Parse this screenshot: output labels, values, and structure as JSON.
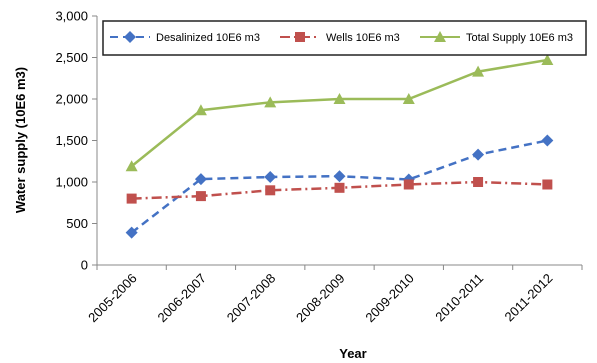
{
  "chart_data": {
    "type": "line",
    "title": "",
    "xlabel": "Year",
    "ylabel": "Water supply (10E6 m3)",
    "ylim": [
      0,
      3000
    ],
    "yticks": [
      0,
      500,
      1000,
      1500,
      2000,
      2500,
      3000
    ],
    "ytick_labels": [
      "0",
      "500",
      "1,000",
      "1,500",
      "2,000",
      "2,500",
      "3,000"
    ],
    "grid": false,
    "legend_position": "top",
    "categories": [
      "2005-2006",
      "2006-2007",
      "2007-2008",
      "2008-2009",
      "2009-2010",
      "2010-2011",
      "2011-2012"
    ],
    "series": [
      {
        "name": "Desalinized 10E6 m3",
        "values": [
          390,
          1035,
          1060,
          1070,
          1030,
          1330,
          1500
        ],
        "color": "#4472C4",
        "dash": "dashed",
        "marker": "diamond"
      },
      {
        "name": "Wells 10E6 m3",
        "values": [
          800,
          830,
          900,
          930,
          970,
          1000,
          970
        ],
        "color": "#C0504D",
        "dash": "dash-dot",
        "marker": "square"
      },
      {
        "name": "Total Supply 10E6 m3",
        "values": [
          1190,
          1865,
          1960,
          2000,
          2000,
          2330,
          2470
        ],
        "color": "#9BBB59",
        "dash": "solid",
        "marker": "triangle"
      }
    ]
  }
}
